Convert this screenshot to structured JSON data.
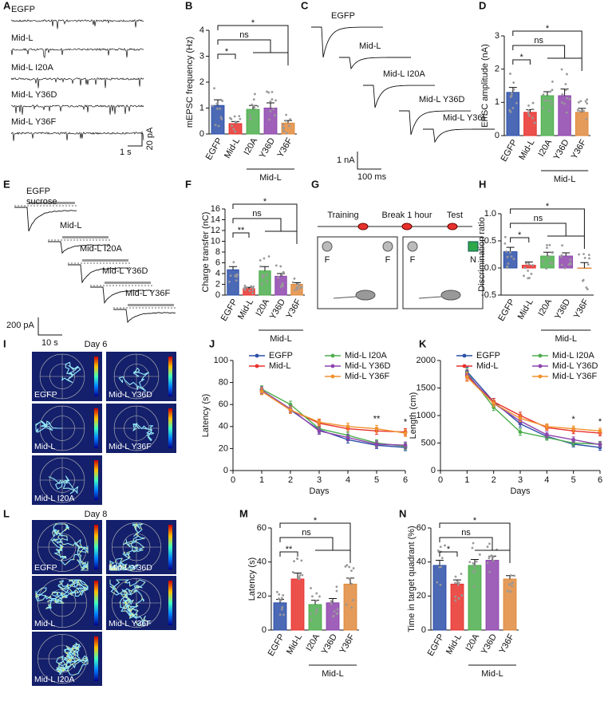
{
  "panel_letters": [
    "A",
    "B",
    "C",
    "D",
    "E",
    "F",
    "G",
    "H",
    "I",
    "J",
    "K",
    "L",
    "M",
    "N"
  ],
  "traces_A": {
    "labels": [
      "EGFP",
      "Mid-L",
      "Mid-L I20A",
      "Mid-L Y36D",
      "Mid-L Y36F"
    ],
    "scale_x": "1 s",
    "scale_y": "20 pA"
  },
  "traces_C": {
    "labels": [
      "EGFP",
      "Mid-L",
      "Mid-L I20A",
      "Mid-L Y36D",
      "Mid-L Y36F"
    ],
    "scale_x": "100 ms",
    "scale_y": "1 nA"
  },
  "traces_E": {
    "labels": [
      "EGFP",
      "Mid-L",
      "Mid-L I20A",
      "Mid-L Y36D",
      "Mid-L Y36F"
    ],
    "stimulus": "sucrose",
    "scale_x": "10 s",
    "scale_y": "200 pA"
  },
  "diagram_G": {
    "phases": [
      "Training",
      "Break 1 hour",
      "Test"
    ],
    "training_objects": [
      "F",
      "F"
    ],
    "test_objects": [
      "F",
      "N"
    ]
  },
  "heatmaps_I": {
    "title": "Day 6",
    "labels": [
      "EGFP",
      "Mid-L Y36D",
      "Mid-L",
      "Mid-L Y36F",
      "Mid-L I20A"
    ]
  },
  "heatmaps_L": {
    "title": "Day 8",
    "labels": [
      "EGFP",
      "Mid-L Y36D",
      "Mid-L",
      "Mid-L Y36F",
      "Mid-L I20A"
    ]
  },
  "chart_data": [
    {
      "type": "bar",
      "ylabel": "mEPSC frequency (Hz)",
      "categories": [
        "EGFP",
        "Mid-L",
        "I20A",
        "Y36D",
        "Y36F"
      ],
      "values": [
        1.1,
        0.4,
        0.95,
        1.0,
        0.42
      ],
      "errors": [
        0.22,
        0.08,
        0.15,
        0.2,
        0.1
      ],
      "colors": [
        "#2b4fa8",
        "#e8312c",
        "#4cae4c",
        "#8e44ad",
        "#e08a3c"
      ],
      "ylim": [
        0,
        4
      ],
      "yticks": [
        0,
        1,
        2,
        3,
        4
      ],
      "significance": [
        "*",
        "ns",
        "*"
      ],
      "group_label": "Mid-L"
    },
    {
      "type": "bar",
      "ylabel": "EPSC amplitude (nA)",
      "categories": [
        "EGFP",
        "Mid-L",
        "I20A",
        "Y36D",
        "Y36F"
      ],
      "values": [
        1.3,
        0.7,
        1.2,
        1.2,
        0.7
      ],
      "errors": [
        0.15,
        0.08,
        0.12,
        0.2,
        0.12
      ],
      "colors": [
        "#2b4fa8",
        "#e8312c",
        "#4cae4c",
        "#8e44ad",
        "#e08a3c"
      ],
      "ylim": [
        0,
        3
      ],
      "yticks": [
        0,
        1,
        2,
        3
      ],
      "significance": [
        "*",
        "ns",
        "*"
      ],
      "group_label": "Mid-L"
    },
    {
      "type": "bar",
      "ylabel": "Charge transfer (nC)",
      "categories": [
        "EGFP",
        "Mid-L",
        "I20A",
        "Y36D",
        "Y36F"
      ],
      "values": [
        4.7,
        1.2,
        4.5,
        3.5,
        2.0
      ],
      "errors": [
        0.6,
        0.25,
        0.8,
        0.5,
        0.3
      ],
      "colors": [
        "#2b4fa8",
        "#e8312c",
        "#4cae4c",
        "#8e44ad",
        "#e08a3c"
      ],
      "ylim": [
        0,
        16
      ],
      "yticks": [
        0,
        2,
        4,
        6,
        8,
        10,
        12,
        14,
        16
      ],
      "significance": [
        "**",
        "ns",
        "*"
      ],
      "group_label": "Mid-L"
    },
    {
      "type": "bar",
      "ylabel": "Discrimination ratio",
      "categories": [
        "EGFP",
        "Mid-L",
        "I20A",
        "Y36D",
        "Y36F"
      ],
      "values": [
        0.3,
        0.05,
        0.22,
        0.22,
        0.0
      ],
      "errors": [
        0.08,
        0.06,
        0.07,
        0.06,
        0.1
      ],
      "colors": [
        "#2b4fa8",
        "#e8312c",
        "#4cae4c",
        "#8e44ad",
        "#e08a3c"
      ],
      "ylim": [
        -0.5,
        1.0
      ],
      "yticks": [
        -0.5,
        {
          "value": 0,
          "label": "0.0"
        },
        0.5,
        {
          "value": 1,
          "label": "1.0"
        }
      ],
      "significance": [
        "*",
        "ns",
        "*"
      ],
      "group_label": "Mid-L"
    },
    {
      "type": "line",
      "ylabel": "Latency (s)",
      "xlabel": "Days",
      "x": [
        1,
        2,
        3,
        4,
        5,
        6
      ],
      "xlim": [
        0,
        6
      ],
      "xticks": [
        0,
        1,
        2,
        3,
        4,
        5,
        6
      ],
      "ylim": [
        0,
        100
      ],
      "yticks": [
        0,
        20,
        40,
        60,
        80,
        100
      ],
      "series": [
        {
          "name": "EGFP",
          "color": "#2b4fa8",
          "values": [
            73,
            55,
            37,
            28,
            23,
            21
          ],
          "errors": [
            3,
            3,
            3,
            3,
            3,
            3
          ]
        },
        {
          "name": "Mid-L",
          "color": "#e8312c",
          "values": [
            72,
            55,
            43,
            38,
            36,
            35
          ],
          "errors": [
            3,
            3,
            3,
            3,
            3,
            3
          ]
        },
        {
          "name": "Mid-L I20A",
          "color": "#4cae4c",
          "values": [
            74,
            60,
            38,
            32,
            25,
            22
          ],
          "errors": [
            3,
            3,
            3,
            3,
            3,
            3
          ]
        },
        {
          "name": "Mid-L Y36D",
          "color": "#8e44ad",
          "values": [
            73,
            56,
            36,
            30,
            24,
            23
          ],
          "errors": [
            3,
            3,
            3,
            3,
            3,
            3
          ]
        },
        {
          "name": "Mid-L Y36F",
          "color": "#f0922e",
          "values": [
            72,
            55,
            44,
            40,
            38,
            34
          ],
          "errors": [
            3,
            3,
            3,
            3,
            3,
            3
          ]
        }
      ],
      "annotations": [
        {
          "x": 5,
          "text": "**"
        },
        {
          "x": 6,
          "text": "*"
        }
      ]
    },
    {
      "type": "line",
      "ylabel": "Length (cm)",
      "xlabel": "Days",
      "x": [
        1,
        2,
        3,
        4,
        5,
        6
      ],
      "xlim": [
        0,
        6
      ],
      "xticks": [
        0,
        1,
        2,
        3,
        4,
        5,
        6
      ],
      "ylim": [
        0,
        2000
      ],
      "yticks": [
        0,
        500,
        1000,
        1500,
        2000
      ],
      "series": [
        {
          "name": "EGFP",
          "color": "#2b4fa8",
          "values": [
            1800,
            1250,
            850,
            620,
            480,
            420
          ],
          "errors": [
            80,
            60,
            60,
            50,
            50,
            50
          ]
        },
        {
          "name": "Mid-L",
          "color": "#e8312c",
          "values": [
            1720,
            1250,
            1000,
            780,
            720,
            680
          ],
          "errors": [
            80,
            60,
            60,
            50,
            50,
            50
          ]
        },
        {
          "name": "Mid-L I20A",
          "color": "#4cae4c",
          "values": [
            1780,
            1150,
            700,
            600,
            500,
            480
          ],
          "errors": [
            80,
            60,
            60,
            50,
            50,
            50
          ]
        },
        {
          "name": "Mid-L Y36D",
          "color": "#8e44ad",
          "values": [
            1750,
            1220,
            900,
            650,
            560,
            470
          ],
          "errors": [
            80,
            60,
            60,
            50,
            50,
            50
          ]
        },
        {
          "name": "Mid-L Y36F",
          "color": "#f0922e",
          "values": [
            1700,
            1220,
            950,
            800,
            760,
            720
          ],
          "errors": [
            80,
            60,
            60,
            50,
            50,
            50
          ]
        }
      ],
      "annotations": [
        {
          "x": 5,
          "text": "*"
        },
        {
          "x": 6,
          "text": "*"
        }
      ]
    },
    {
      "type": "bar",
      "ylabel": "Latency (s)",
      "categories": [
        "EGFP",
        "Mid-L",
        "I20A",
        "Y36D",
        "Y36F"
      ],
      "values": [
        16,
        30,
        15,
        16,
        27
      ],
      "errors": [
        2,
        3.5,
        2.5,
        2.5,
        3.5
      ],
      "colors": [
        "#2b4fa8",
        "#e8312c",
        "#4cae4c",
        "#8e44ad",
        "#e08a3c"
      ],
      "ylim": [
        0,
        60
      ],
      "yticks": [
        0,
        20,
        40,
        60
      ],
      "significance": [
        "**",
        "ns",
        "*"
      ],
      "group_label": "Mid-L"
    },
    {
      "type": "bar",
      "ylabel": "Time in target quadrant (%)",
      "categories": [
        "EGFP",
        "Mid-L",
        "I20A",
        "Y36D",
        "Y36F"
      ],
      "values": [
        38,
        27,
        38,
        41,
        30
      ],
      "errors": [
        3,
        2.5,
        3.5,
        2.5,
        2
      ],
      "colors": [
        "#2b4fa8",
        "#e8312c",
        "#4cae4c",
        "#8e44ad",
        "#e08a3c"
      ],
      "ylim": [
        0,
        60
      ],
      "yticks": [
        0,
        20,
        40,
        60
      ],
      "significance": [
        "*",
        "ns",
        "*"
      ],
      "group_label": "Mid-L"
    }
  ]
}
